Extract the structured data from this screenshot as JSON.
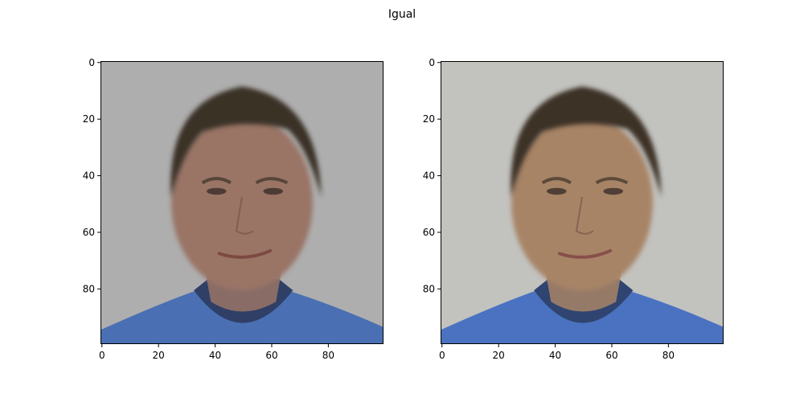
{
  "figure": {
    "title": "Igual"
  },
  "panels": [
    {
      "image": "face-photo",
      "x_ticks": [
        "0",
        "20",
        "40",
        "60",
        "80"
      ],
      "y_ticks": [
        "0",
        "20",
        "40",
        "60",
        "80"
      ],
      "colors": {
        "background": "#aeaeae",
        "hair": "#3a3026",
        "skin": "#9a7466",
        "shirt": "#4a6fb3",
        "collar_shadow": "#2f3f66",
        "lips": "#7c4a42"
      }
    },
    {
      "image": "face-photo",
      "x_ticks": [
        "0",
        "20",
        "40",
        "60",
        "80"
      ],
      "y_ticks": [
        "0",
        "20",
        "40",
        "60",
        "80"
      ],
      "colors": {
        "background": "#c2c2bf",
        "hair": "#3c3228",
        "skin": "#a88466",
        "shirt": "#4a72c0",
        "collar_shadow": "#2f4470",
        "lips": "#86504a"
      }
    }
  ]
}
